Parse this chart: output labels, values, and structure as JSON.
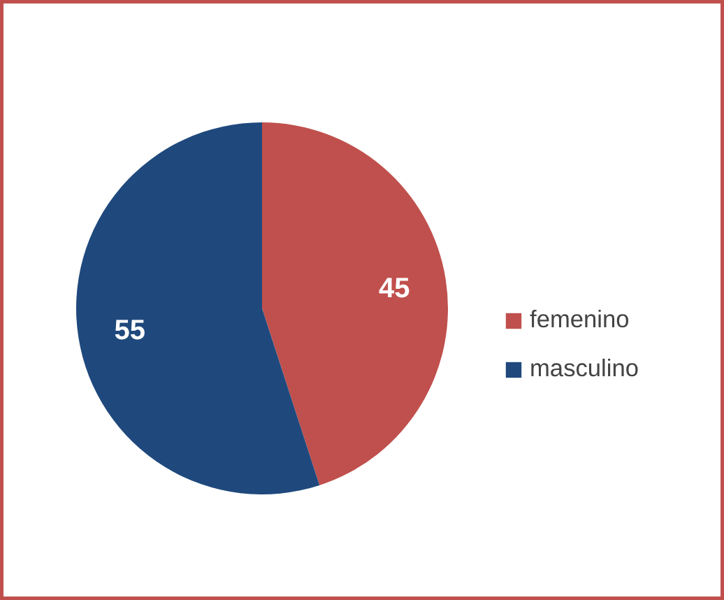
{
  "chart_data": {
    "type": "pie",
    "categories": [
      "femenino",
      "masculino"
    ],
    "values": [
      45,
      55
    ],
    "colors": [
      "#c0504d",
      "#1f497d"
    ],
    "data_labels": true,
    "legend": "right"
  }
}
